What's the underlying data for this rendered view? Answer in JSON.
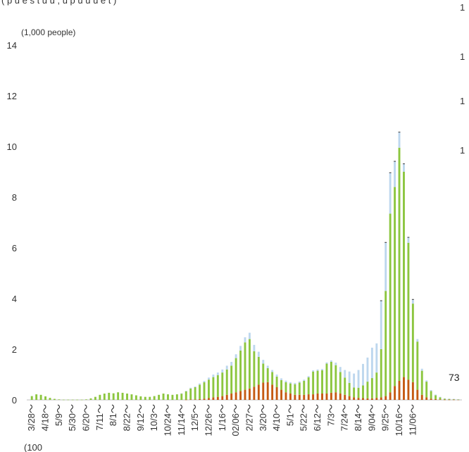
{
  "chart_data": {
    "type": "bar",
    "stacked": true,
    "unit_label": "(1,000 people)",
    "ylim": [
      0,
      14
    ],
    "yticks": [
      0,
      2,
      4,
      6,
      8,
      10,
      12,
      14
    ],
    "grid": false,
    "legend": "none",
    "x_tick_labels": [
      "3/28～",
      "4/18～",
      "5/9～",
      "5/30～",
      "6/20～",
      "7/11～",
      "8/1～",
      "8/22～",
      "9/12～",
      "10/3～",
      "10/24～",
      "11/14～",
      "12/5～",
      "12/26～",
      "1/16～",
      "02/06～",
      "2/27～",
      "3/20～",
      "4/10～",
      "5/1～",
      "5/22～",
      "6/12～",
      "7/3～",
      "7/24～",
      "8/14～",
      "9/04～",
      "9/25～",
      "10/16～",
      "11/06～"
    ],
    "x_tick_every": 3,
    "series": [
      {
        "color": "#c55a11",
        "values": [
          0,
          0,
          0,
          0,
          0,
          0,
          0,
          0,
          0,
          0,
          0,
          0,
          0,
          0,
          0,
          0,
          0,
          0,
          0,
          0,
          0,
          0,
          0,
          0,
          0,
          0,
          0,
          0,
          0,
          0,
          0,
          0,
          0,
          0,
          0.01,
          0.02,
          0.02,
          0.03,
          0.05,
          0.07,
          0.1,
          0.12,
          0.15,
          0.2,
          0.25,
          0.3,
          0.35,
          0.4,
          0.45,
          0.52,
          0.6,
          0.68,
          0.7,
          0.6,
          0.5,
          0.4,
          0.3,
          0.25,
          0.2,
          0.2,
          0.2,
          0.22,
          0.22,
          0.25,
          0.25,
          0.25,
          0.28,
          0.3,
          0.25,
          0.2,
          0.15,
          0.1,
          0.08,
          0.07,
          0.06,
          0.06,
          0.08,
          0.1,
          0.15,
          0.3,
          0.55,
          0.75,
          0.9,
          0.8,
          0.7,
          0.4,
          0.2,
          0.1,
          0.05,
          0.03,
          0.02,
          0.01,
          0.01,
          0.01,
          0.01
        ]
      },
      {
        "color": "#8cc63f",
        "values": [
          0.15,
          0.22,
          0.2,
          0.14,
          0.08,
          0.04,
          0.02,
          0.01,
          0.01,
          0.01,
          0.01,
          0.01,
          0.02,
          0.06,
          0.12,
          0.2,
          0.25,
          0.28,
          0.26,
          0.3,
          0.28,
          0.25,
          0.22,
          0.18,
          0.14,
          0.12,
          0.12,
          0.15,
          0.2,
          0.25,
          0.22,
          0.2,
          0.22,
          0.25,
          0.33,
          0.43,
          0.48,
          0.57,
          0.65,
          0.73,
          0.8,
          0.86,
          0.93,
          1.0,
          1.1,
          1.35,
          1.6,
          1.87,
          1.95,
          1.4,
          1.1,
          0.75,
          0.55,
          0.5,
          0.42,
          0.38,
          0.4,
          0.4,
          0.42,
          0.48,
          0.55,
          0.67,
          0.9,
          0.9,
          0.92,
          1.18,
          1.22,
          1.07,
          0.85,
          0.68,
          0.52,
          0.39,
          0.4,
          0.5,
          0.66,
          0.8,
          1.0,
          1.9,
          4.15,
          7.05,
          7.85,
          9.2,
          8.1,
          5.4,
          3.1,
          1.9,
          0.95,
          0.62,
          0.3,
          0.15,
          0.08,
          0.04,
          0.03,
          0.02,
          0.01
        ]
      },
      {
        "color": "#bdd7ee",
        "values": [
          0,
          0,
          0,
          0,
          0,
          0,
          0,
          0,
          0,
          0,
          0,
          0,
          0,
          0,
          0,
          0,
          0,
          0,
          0,
          0,
          0,
          0,
          0,
          0,
          0,
          0,
          0,
          0,
          0,
          0,
          0,
          0,
          0,
          0.01,
          0.02,
          0.03,
          0.03,
          0.05,
          0.05,
          0.08,
          0.1,
          0.1,
          0.12,
          0.15,
          0.15,
          0.15,
          0.18,
          0.2,
          0.25,
          0.25,
          0.2,
          0.15,
          0.1,
          0.08,
          0.08,
          0.07,
          0.06,
          0.05,
          0.05,
          0.05,
          0.05,
          0.05,
          0.05,
          0.05,
          0.05,
          0.05,
          0.06,
          0.1,
          0.2,
          0.3,
          0.45,
          0.55,
          0.7,
          0.85,
          0.95,
          1.2,
          1.15,
          1.9,
          1.9,
          1.6,
          1.0,
          0.6,
          0.3,
          0.2,
          0.15,
          0.1,
          0.08,
          0.05,
          0.04,
          0.03,
          0.02,
          0.01,
          0.01,
          0.01,
          0.01
        ]
      }
    ],
    "annotations": [
      {
        "text": "73",
        "x_index": 91,
        "y": 0.7
      }
    ],
    "clipped_text": {
      "top_left": "( p u e s t u   u   ,   u   p         u   u   u   e t )",
      "right_digits": [
        "1",
        "1",
        "1",
        "1"
      ],
      "bottom_left": "(100"
    }
  }
}
